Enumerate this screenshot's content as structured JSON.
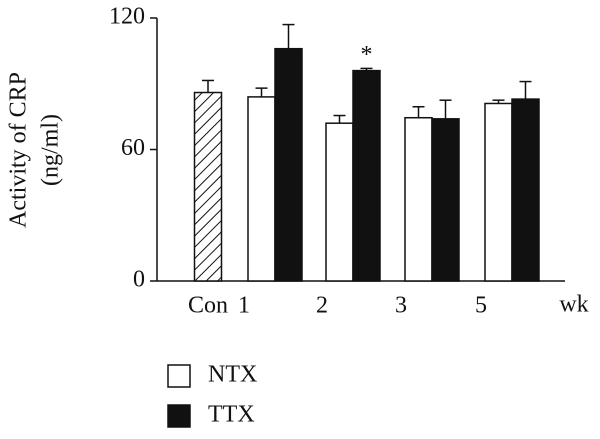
{
  "chart_data": {
    "type": "bar",
    "ylabel": [
      "Activity of CRP",
      "(ng/ml)"
    ],
    "xlabel": "wk",
    "categories": [
      "Con",
      "1",
      "2",
      "3",
      "5"
    ],
    "series": [
      {
        "pattern": "hatch",
        "values": [
          86,
          null,
          null,
          null,
          null
        ],
        "errors": [
          5.5,
          null,
          null,
          null,
          null
        ]
      },
      {
        "name": "NTX",
        "color": "#ffffff",
        "values": [
          null,
          84,
          72,
          74.5,
          81
        ],
        "errors": [
          null,
          4,
          3.5,
          5,
          1.5
        ]
      },
      {
        "name": "TTX",
        "color": "#111111",
        "values": [
          null,
          106,
          96,
          74,
          83
        ],
        "errors": [
          null,
          11,
          1,
          8.5,
          8
        ]
      }
    ],
    "annotations": [
      {
        "text": "*",
        "series": 2,
        "category": 2
      }
    ],
    "ylim": [
      0,
      120
    ],
    "yticks": [
      0,
      60,
      120
    ],
    "grid": false
  }
}
